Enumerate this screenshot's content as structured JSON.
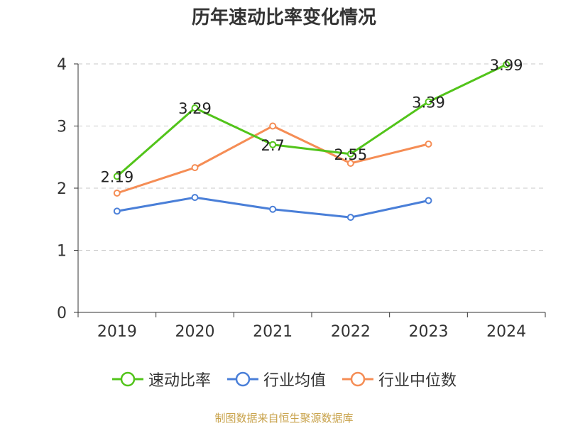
{
  "chart_data": {
    "type": "line",
    "title": "历年速动比率变化情况",
    "categories": [
      "2019",
      "2020",
      "2021",
      "2022",
      "2023",
      "2024"
    ],
    "ylim": [
      0,
      4
    ],
    "yticks": [
      "0",
      "1",
      "2",
      "3",
      "4"
    ],
    "grid": true,
    "legend_position": "bottom",
    "series": [
      {
        "name": "速动比率",
        "color": "#52c41a",
        "values": [
          2.19,
          3.29,
          2.7,
          2.55,
          3.39,
          3.99
        ],
        "labels": [
          "2.19",
          "3.29",
          "2.7",
          "2.55",
          "3.39",
          "3.99"
        ]
      },
      {
        "name": "行业均值",
        "color": "#4a7fd8",
        "values": [
          1.63,
          1.85,
          1.66,
          1.53,
          1.8,
          null
        ]
      },
      {
        "name": "行业中位数",
        "color": "#f58d55",
        "values": [
          1.92,
          2.33,
          3.0,
          2.4,
          2.71,
          null
        ]
      }
    ],
    "source": "制图数据来自恒生聚源数据库"
  }
}
